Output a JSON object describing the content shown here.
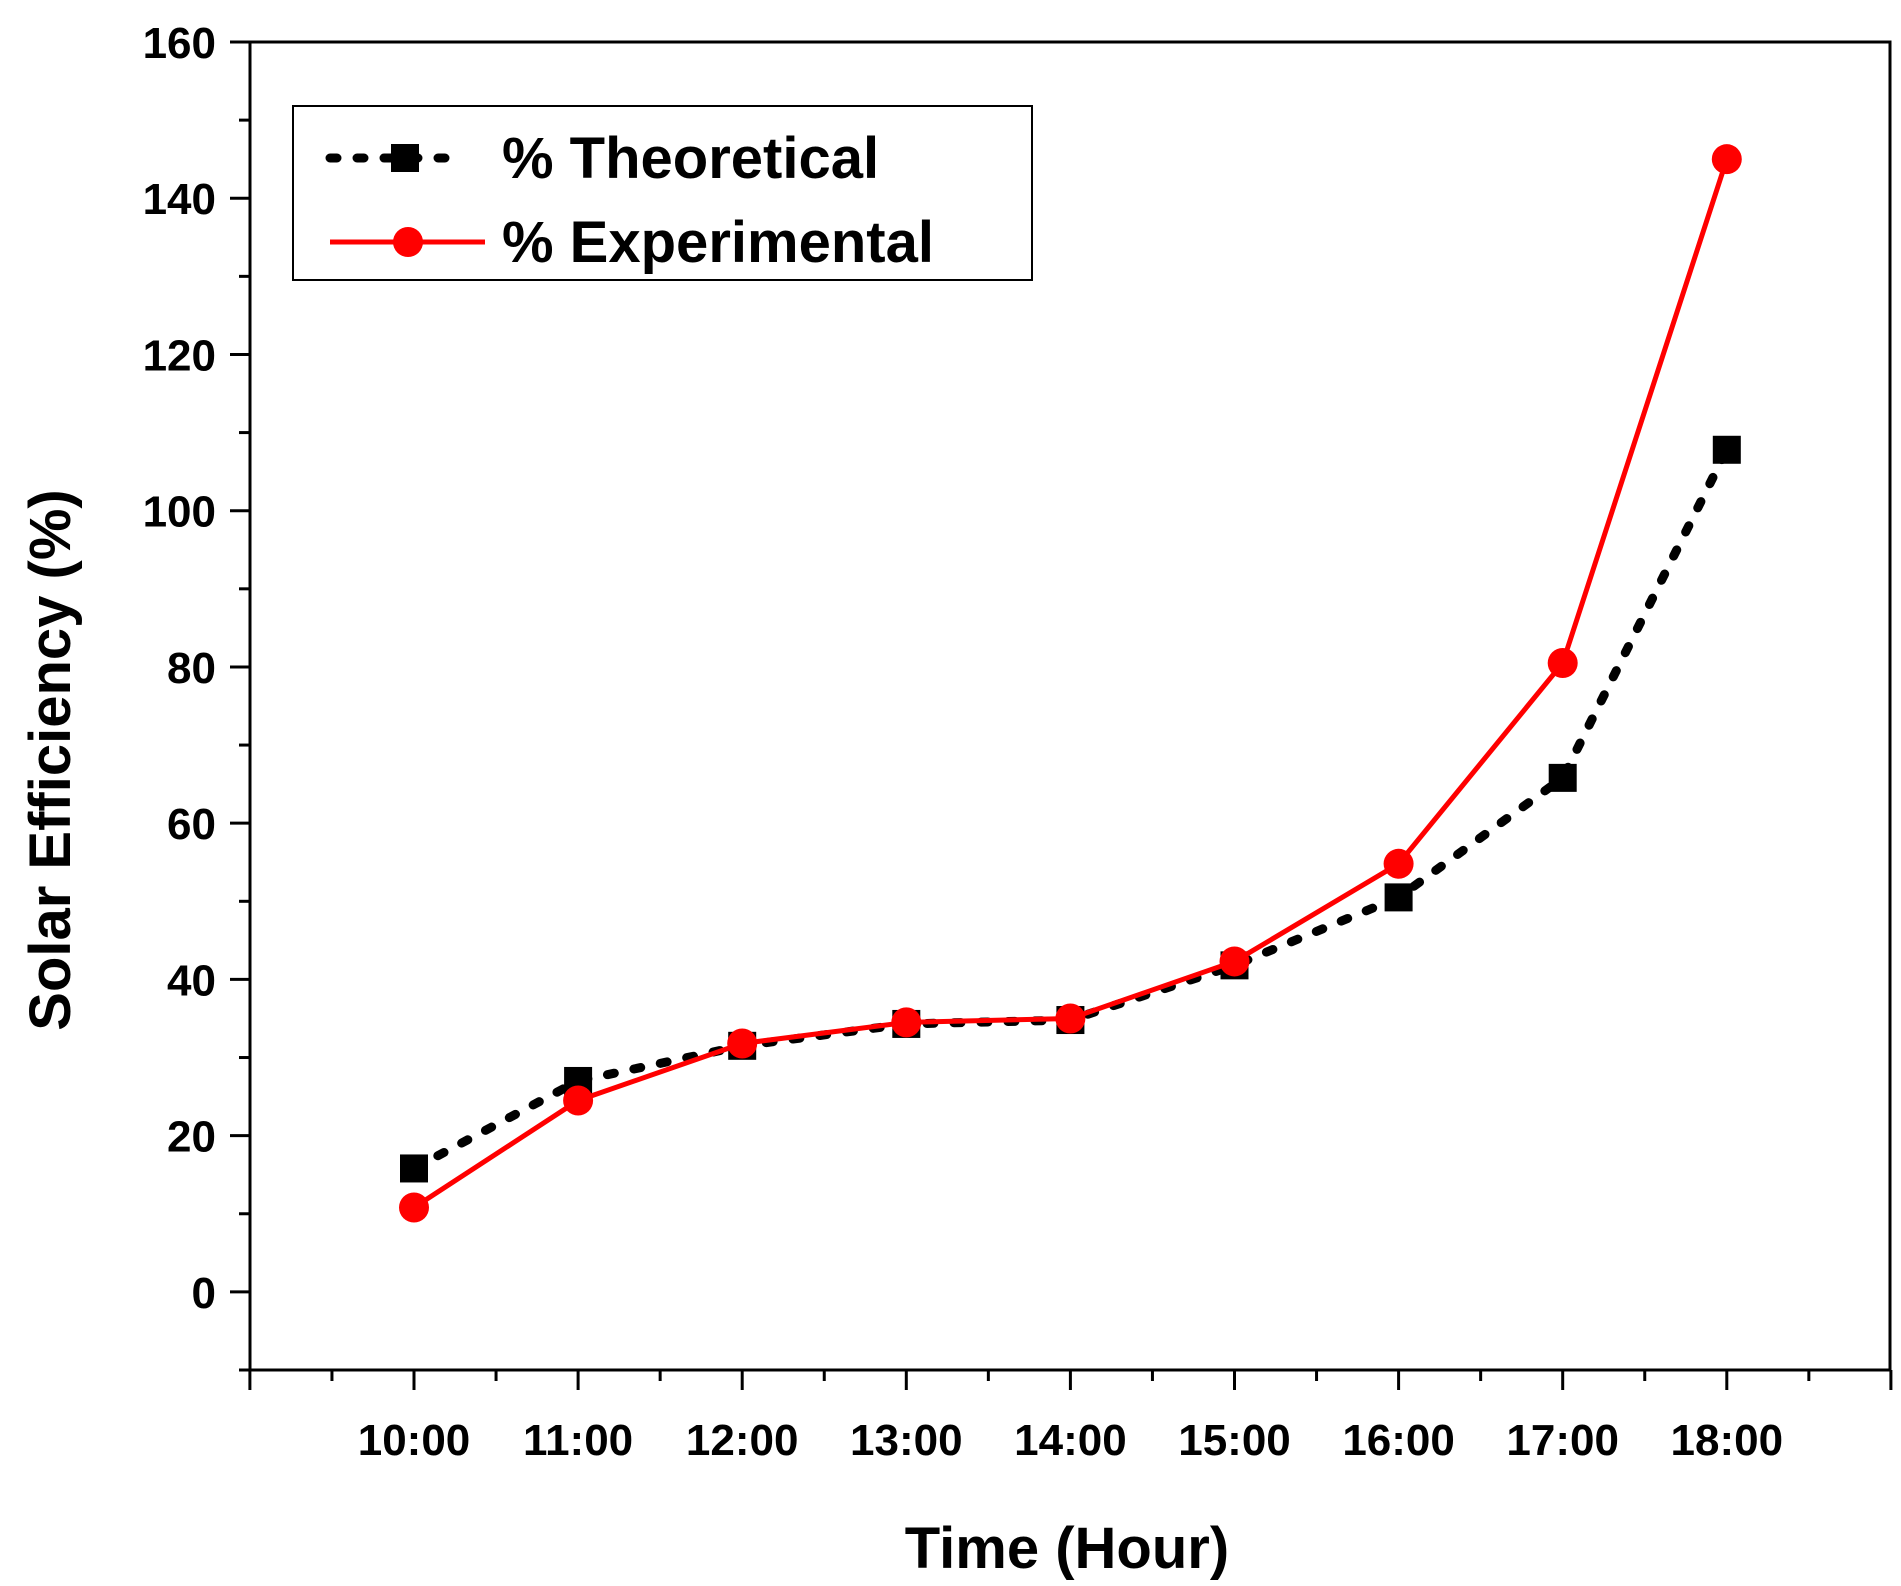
{
  "chart_data": {
    "type": "line",
    "categories": [
      "10:00",
      "11:00",
      "12:00",
      "13:00",
      "14:00",
      "15:00",
      "16:00",
      "17:00",
      "18:00"
    ],
    "series": [
      {
        "name": "% Theoretical",
        "values": [
          15.8,
          27.0,
          31.5,
          34.3,
          34.8,
          41.8,
          50.5,
          65.8,
          107.8
        ],
        "color": "#000000",
        "line_style": "dotted",
        "marker": "square"
      },
      {
        "name": "% Experimental",
        "values": [
          10.8,
          24.5,
          31.8,
          34.5,
          35.0,
          42.3,
          54.8,
          80.5,
          145.0
        ],
        "color": "#ff0000",
        "line_style": "solid",
        "marker": "circle"
      }
    ],
    "xlabel": "Time (Hour)",
    "ylabel": "Solar Efficiency (%)",
    "ylim": [
      -10,
      160
    ],
    "yticks": [
      0,
      20,
      40,
      60,
      80,
      100,
      120,
      140,
      160
    ],
    "legend_position": "top-left",
    "grid": false
  }
}
